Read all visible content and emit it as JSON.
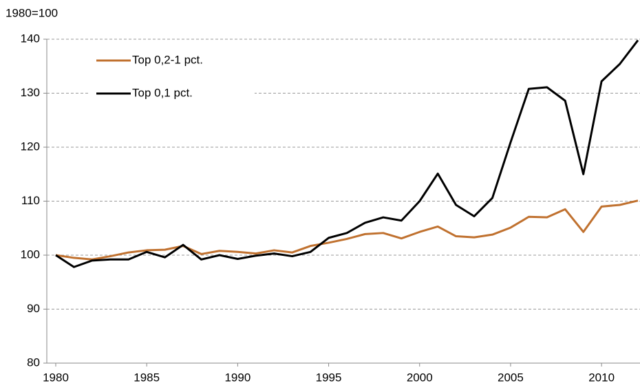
{
  "chart_data": {
    "type": "line",
    "y_label": "1980=100",
    "x": [
      1980,
      1981,
      1982,
      1983,
      1984,
      1985,
      1986,
      1987,
      1988,
      1989,
      1990,
      1991,
      1992,
      1993,
      1994,
      1995,
      1996,
      1997,
      1998,
      1999,
      2000,
      2001,
      2002,
      2003,
      2004,
      2005,
      2006,
      2007,
      2008,
      2009,
      2010,
      2011,
      2012
    ],
    "series": [
      {
        "name": "Top 0,2-1 pct.",
        "color": "#c0712f",
        "values": [
          100,
          99.5,
          99.2,
          99.8,
          100.5,
          100.9,
          101.0,
          101.7,
          100.2,
          100.8,
          100.6,
          100.3,
          100.9,
          100.5,
          101.7,
          102.3,
          103.0,
          103.9,
          104.1,
          103.1,
          104.3,
          105.3,
          103.5,
          103.3,
          103.8,
          105.1,
          107.1,
          107.0,
          108.5,
          104.3,
          109.0,
          109.3,
          110.1
        ]
      },
      {
        "name": "Top 0,1 pct.",
        "color": "#000000",
        "values": [
          100,
          97.8,
          99.0,
          99.2,
          99.2,
          100.6,
          99.6,
          101.9,
          99.2,
          100.0,
          99.3,
          99.9,
          100.3,
          99.8,
          100.6,
          103.2,
          104.1,
          106.0,
          107.0,
          106.4,
          110.0,
          115.1,
          109.3,
          107.2,
          110.6,
          120.9,
          130.8,
          131.1,
          128.6,
          115.0,
          132.2,
          135.4,
          139.8
        ]
      }
    ],
    "xlim": [
      1980,
      2012
    ],
    "xticks": [
      1980,
      1985,
      1990,
      1995,
      2000,
      2005,
      2010
    ],
    "ylim": [
      80,
      140
    ],
    "yticks": [
      80,
      90,
      100,
      110,
      120,
      130,
      140
    ],
    "grid": true,
    "legend": "upper left"
  }
}
